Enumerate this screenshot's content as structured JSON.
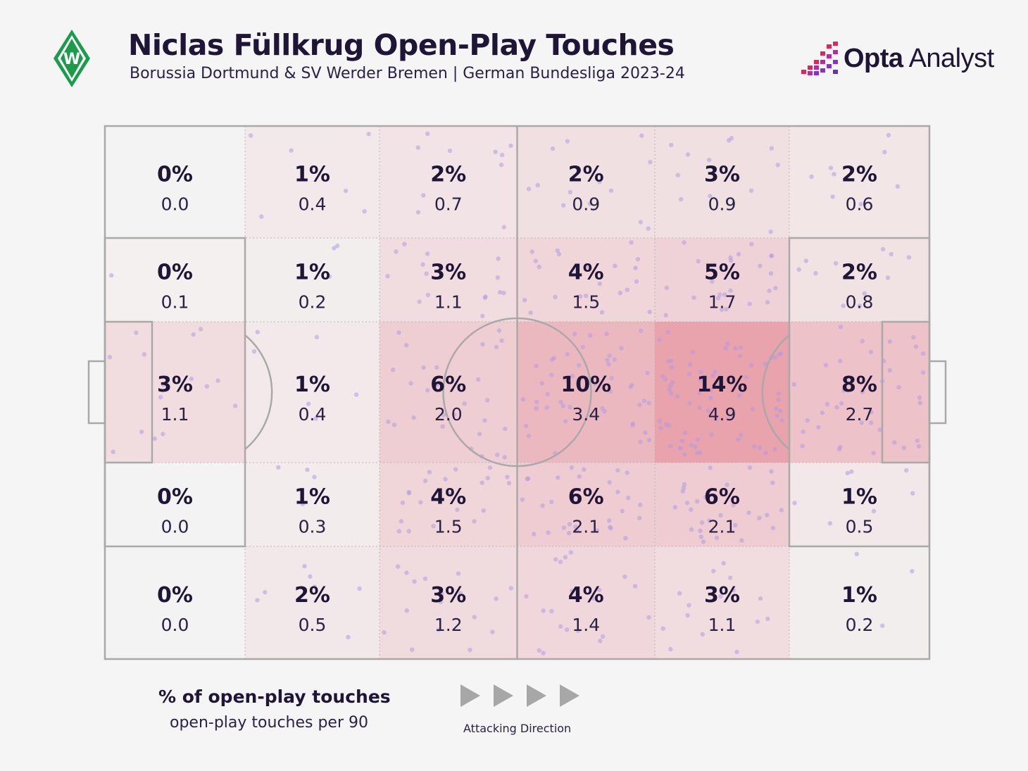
{
  "header": {
    "title": "Niclas Füllkrug Open-Play Touches",
    "subtitle": "Borussia Dortmund & SV Werder Bremen | German Bundesliga 2023-24",
    "crest_icon": "werder-bremen-crest-icon",
    "crest_letter": "W"
  },
  "brand": {
    "icon": "opta-bars-icon",
    "name_bold": "Opta",
    "name_regular": "Analyst"
  },
  "chart_data": {
    "type": "heatmap",
    "description_axis": "pitch zones, attacking left to right",
    "columns": 6,
    "rows": 5,
    "cells": [
      [
        {
          "pct": "0%",
          "p90": "0.0"
        },
        {
          "pct": "1%",
          "p90": "0.4"
        },
        {
          "pct": "2%",
          "p90": "0.7"
        },
        {
          "pct": "2%",
          "p90": "0.9"
        },
        {
          "pct": "3%",
          "p90": "0.9"
        },
        {
          "pct": "2%",
          "p90": "0.6"
        }
      ],
      [
        {
          "pct": "0%",
          "p90": "0.1"
        },
        {
          "pct": "1%",
          "p90": "0.2"
        },
        {
          "pct": "3%",
          "p90": "1.1"
        },
        {
          "pct": "4%",
          "p90": "1.5"
        },
        {
          "pct": "5%",
          "p90": "1.7"
        },
        {
          "pct": "2%",
          "p90": "0.8"
        }
      ],
      [
        {
          "pct": "3%",
          "p90": "1.1"
        },
        {
          "pct": "1%",
          "p90": "0.4"
        },
        {
          "pct": "6%",
          "p90": "2.0"
        },
        {
          "pct": "10%",
          "p90": "3.4"
        },
        {
          "pct": "14%",
          "p90": "4.9"
        },
        {
          "pct": "8%",
          "p90": "2.7"
        }
      ],
      [
        {
          "pct": "0%",
          "p90": "0.0"
        },
        {
          "pct": "1%",
          "p90": "0.3"
        },
        {
          "pct": "4%",
          "p90": "1.5"
        },
        {
          "pct": "6%",
          "p90": "2.1"
        },
        {
          "pct": "6%",
          "p90": "2.1"
        },
        {
          "pct": "1%",
          "p90": "0.5"
        }
      ],
      [
        {
          "pct": "0%",
          "p90": "0.0"
        },
        {
          "pct": "2%",
          "p90": "0.5"
        },
        {
          "pct": "3%",
          "p90": "1.2"
        },
        {
          "pct": "4%",
          "p90": "1.4"
        },
        {
          "pct": "3%",
          "p90": "1.1"
        },
        {
          "pct": "1%",
          "p90": "0.2"
        }
      ]
    ],
    "color_low": "#f4f3f3",
    "color_high": "#e8a3ad",
    "dot_color": "#b39ae0"
  },
  "legend": {
    "pct_label": "% of open-play touches",
    "p90_label": "open-play touches per 90"
  },
  "direction": {
    "label": "Attacking Direction",
    "icon": "arrow-right-icon"
  }
}
